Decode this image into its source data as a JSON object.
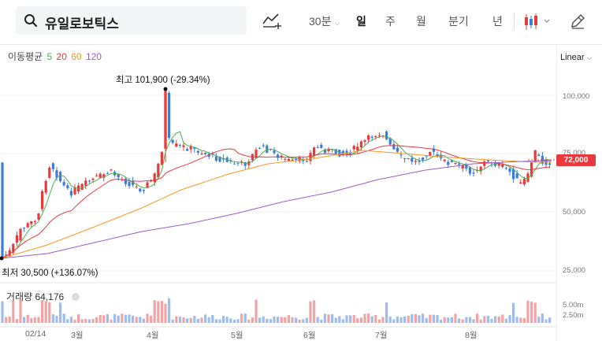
{
  "search": {
    "query": "유일로보틱스"
  },
  "toolbar": {
    "intervals": [
      "30분",
      "일",
      "주",
      "월",
      "분기",
      "년"
    ],
    "active_interval": "일"
  },
  "ma": {
    "label": "이동평균",
    "periods": [
      "5",
      "20",
      "60",
      "120"
    ],
    "colors": [
      "#4caf50",
      "#e8393c",
      "#f59a23",
      "#9c5cc8"
    ]
  },
  "scale": {
    "label": "Linear"
  },
  "price_axis": {
    "ticks": [
      "100,000",
      "75,000",
      "50,000",
      "25,000"
    ]
  },
  "current_price": "72,000",
  "annotations": {
    "high": "최고 101,900 (-29.34%)",
    "low": "최저 30,500 (+136.07%)"
  },
  "volume": {
    "label": "거래량",
    "value": "64,176",
    "ticks": [
      "5.00m",
      "2.50m"
    ]
  },
  "x_axis": {
    "ticks": [
      "02/14",
      "3월",
      "4월",
      "5월",
      "6월",
      "7월",
      "8월"
    ]
  },
  "colors": {
    "up": "#e8393c",
    "down": "#3b7ddd",
    "vol_up": "#f4a3a4",
    "vol_down": "#9dbdee"
  }
}
